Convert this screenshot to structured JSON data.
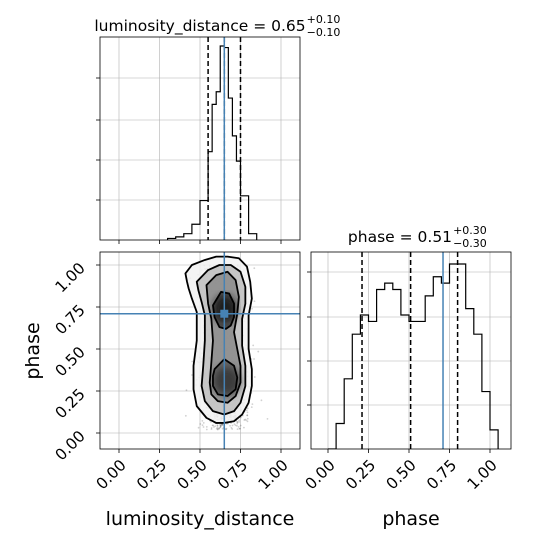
{
  "chart_data": {
    "type": "corner",
    "parameters": [
      "luminosity_distance",
      "phase"
    ],
    "truths": {
      "luminosity_distance": 0.65,
      "phase": 0.71
    },
    "titles": {
      "luminosity_distance": {
        "prefix": "luminosity_distance = 0.65",
        "plus": "+0.10",
        "minus": "−0.10"
      },
      "phase": {
        "prefix": "phase = 0.51",
        "plus": "+0.30",
        "minus": "−0.30"
      }
    },
    "axis_labels": {
      "x1": "luminosity_distance",
      "x2": "phase",
      "y": "phase"
    },
    "tick_labels": [
      "0.00",
      "0.25",
      "0.50",
      "0.75",
      "1.00"
    ],
    "tick_values": [
      0.0,
      0.25,
      0.5,
      0.75,
      1.0
    ],
    "grid": true,
    "colors": {
      "truth": "#4682b4",
      "hist": "#000000",
      "grid": "#b0b0b0",
      "quantile": "#000000",
      "density": "#000000"
    },
    "hist_luminosity_distance": {
      "quantiles": [
        0.55,
        0.65,
        0.75
      ],
      "edges": [
        0.3,
        0.35,
        0.4,
        0.45,
        0.5,
        0.55,
        0.575,
        0.6,
        0.625,
        0.65,
        0.675,
        0.7,
        0.725,
        0.75,
        0.8,
        0.85
      ],
      "counts": [
        1,
        2,
        4,
        10,
        25,
        56,
        86,
        94,
        123,
        122,
        90,
        66,
        50,
        28,
        4
      ]
    },
    "hist_phase": {
      "quantiles": [
        0.21,
        0.51,
        0.8
      ],
      "edges": [
        0.0,
        0.05,
        0.1,
        0.15,
        0.2,
        0.25,
        0.3,
        0.35,
        0.4,
        0.45,
        0.5,
        0.55,
        0.6,
        0.65,
        0.7,
        0.75,
        0.8,
        0.85,
        0.9,
        0.95,
        1.0,
        1.05
      ],
      "counts": [
        0,
        4,
        11,
        18,
        21,
        20,
        25,
        26,
        25,
        21,
        20,
        20,
        24,
        27,
        26,
        29,
        29,
        22,
        18,
        9,
        3
      ]
    },
    "scatter_2d": {
      "x_center": 0.65,
      "x_sd": 0.07,
      "x_range": [
        0.4,
        0.9
      ],
      "y_range": [
        0.02,
        1.0
      ],
      "contours": [
        {
          "level": 1,
          "x": [
            0.41,
            0.45,
            0.53,
            0.6,
            0.67,
            0.74,
            0.79,
            0.81,
            0.82,
            0.8,
            0.8,
            0.82,
            0.82,
            0.8,
            0.76,
            0.71,
            0.65,
            0.6,
            0.54,
            0.48,
            0.46,
            0.46,
            0.48,
            0.48,
            0.45,
            0.43,
            0.42,
            0.41
          ],
          "y": [
            0.95,
            1.0,
            1.03,
            1.05,
            1.05,
            1.04,
            0.99,
            0.9,
            0.8,
            0.7,
            0.5,
            0.38,
            0.28,
            0.18,
            0.11,
            0.07,
            0.06,
            0.06,
            0.09,
            0.16,
            0.26,
            0.4,
            0.55,
            0.72,
            0.8,
            0.86,
            0.9,
            0.95
          ]
        },
        {
          "level": 2,
          "x": [
            0.48,
            0.55,
            0.62,
            0.69,
            0.75,
            0.78,
            0.78,
            0.76,
            0.76,
            0.78,
            0.78,
            0.75,
            0.71,
            0.65,
            0.58,
            0.53,
            0.51,
            0.52,
            0.53,
            0.53,
            0.51,
            0.49,
            0.48
          ],
          "y": [
            0.9,
            0.97,
            1.0,
            1.0,
            0.96,
            0.87,
            0.77,
            0.68,
            0.52,
            0.4,
            0.28,
            0.18,
            0.13,
            0.11,
            0.13,
            0.19,
            0.28,
            0.4,
            0.55,
            0.7,
            0.78,
            0.85,
            0.9
          ]
        },
        {
          "level": 3,
          "x": [
            0.54,
            0.6,
            0.67,
            0.72,
            0.74,
            0.73,
            0.71,
            0.73,
            0.75,
            0.75,
            0.72,
            0.67,
            0.61,
            0.57,
            0.56,
            0.57,
            0.58,
            0.57,
            0.55,
            0.54
          ],
          "y": [
            0.88,
            0.94,
            0.96,
            0.91,
            0.81,
            0.71,
            0.6,
            0.5,
            0.4,
            0.3,
            0.22,
            0.18,
            0.19,
            0.23,
            0.3,
            0.42,
            0.55,
            0.68,
            0.77,
            0.88
          ]
        },
        {
          "level": 4,
          "x": [
            0.58,
            0.63,
            0.68,
            0.71,
            0.71,
            0.69,
            0.66,
            0.62,
            0.59,
            0.58
          ],
          "y": [
            0.76,
            0.84,
            0.83,
            0.77,
            0.69,
            0.64,
            0.62,
            0.63,
            0.69,
            0.76
          ]
        },
        {
          "level": 5,
          "x": [
            0.59,
            0.65,
            0.71,
            0.73,
            0.72,
            0.67,
            0.61,
            0.58,
            0.58,
            0.59
          ],
          "y": [
            0.38,
            0.44,
            0.4,
            0.33,
            0.26,
            0.22,
            0.23,
            0.28,
            0.34,
            0.38
          ]
        }
      ]
    }
  }
}
